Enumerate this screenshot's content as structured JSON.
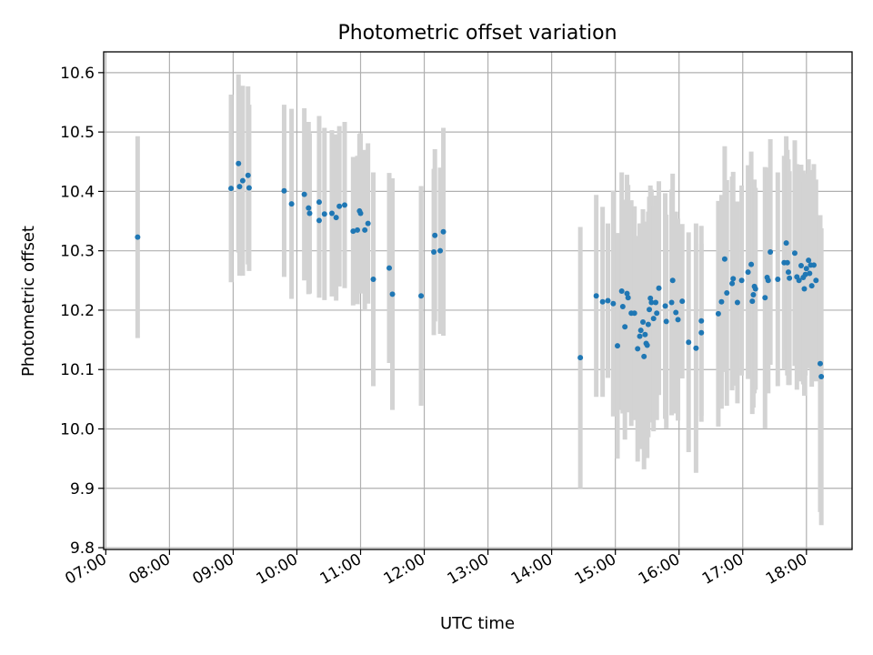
{
  "chart_data": {
    "type": "scatter",
    "title": "Photometric offset variation",
    "xlabel": "UTC time",
    "ylabel": "Photometric offset",
    "x_ticks": [
      "07:00",
      "08:00",
      "09:00",
      "10:00",
      "11:00",
      "12:00",
      "13:00",
      "14:00",
      "15:00",
      "16:00",
      "17:00",
      "18:00"
    ],
    "x_tick_hours": [
      7,
      8,
      9,
      10,
      11,
      12,
      13,
      14,
      15,
      16,
      17,
      18
    ],
    "y_ticks": [
      "9.8",
      "9.9",
      "10.0",
      "10.1",
      "10.2",
      "10.3",
      "10.4",
      "10.5",
      "10.6"
    ],
    "y_tick_values": [
      9.8,
      9.9,
      10.0,
      10.1,
      10.2,
      10.3,
      10.4,
      10.5,
      10.6
    ],
    "xlim": [
      "06:58",
      "18:43"
    ],
    "ylim": [
      9.797,
      10.635
    ],
    "grid": true,
    "point_color": "#1f77b4",
    "errorbar_color": "#d3d3d3",
    "points": [
      [
        "07:30",
        10.323,
        0.17
      ],
      [
        "08:58",
        10.405,
        0.158
      ],
      [
        "09:05",
        10.447,
        0.15
      ],
      [
        "09:06",
        10.408,
        0.15
      ],
      [
        "09:09",
        10.418,
        0.16
      ],
      [
        "09:14",
        10.427,
        0.15
      ],
      [
        "09:15",
        10.406,
        0.14
      ],
      [
        "09:48",
        10.401,
        0.145
      ],
      [
        "09:55",
        10.379,
        0.16
      ],
      [
        "10:07",
        10.395,
        0.145
      ],
      [
        "10:11",
        10.372,
        0.145
      ],
      [
        "10:12",
        10.363,
        0.135
      ],
      [
        "10:21",
        10.351,
        0.13
      ],
      [
        "10:21",
        10.382,
        0.145
      ],
      [
        "10:26",
        10.362,
        0.145
      ],
      [
        "10:33",
        10.363,
        0.14
      ],
      [
        "10:37",
        10.356,
        0.14
      ],
      [
        "10:40",
        10.375,
        0.135
      ],
      [
        "10:45",
        10.377,
        0.14
      ],
      [
        "10:53",
        10.333,
        0.125
      ],
      [
        "10:57",
        10.335,
        0.125
      ],
      [
        "10:59",
        10.367,
        0.13
      ],
      [
        "11:00",
        10.363,
        0.135
      ],
      [
        "11:04",
        10.335,
        0.135
      ],
      [
        "11:07",
        10.346,
        0.135
      ],
      [
        "11:12",
        10.252,
        0.18
      ],
      [
        "11:27",
        10.271,
        0.16
      ],
      [
        "11:30",
        10.227,
        0.195
      ],
      [
        "11:57",
        10.224,
        0.185
      ],
      [
        "12:09",
        10.298,
        0.14
      ],
      [
        "12:10",
        10.326,
        0.145
      ],
      [
        "12:15",
        10.3,
        0.14
      ],
      [
        "12:18",
        10.332,
        0.175
      ],
      [
        "14:27",
        10.12,
        0.22
      ],
      [
        "14:42",
        10.224,
        0.17
      ],
      [
        "14:48",
        10.214,
        0.16
      ],
      [
        "14:53",
        10.216,
        0.13
      ],
      [
        "14:58",
        10.211,
        0.19
      ],
      [
        "15:02",
        10.14,
        0.19
      ],
      [
        "15:06",
        10.232,
        0.2
      ],
      [
        "15:07",
        10.206,
        0.18
      ],
      [
        "15:09",
        10.172,
        0.19
      ],
      [
        "15:11",
        10.228,
        0.2
      ],
      [
        "15:12",
        10.221,
        0.19
      ],
      [
        "15:15",
        10.195,
        0.19
      ],
      [
        "15:18",
        10.195,
        0.18
      ],
      [
        "15:21",
        10.135,
        0.19
      ],
      [
        "15:23",
        10.156,
        0.19
      ],
      [
        "15:24",
        10.166,
        0.18
      ],
      [
        "15:26",
        10.18,
        0.19
      ],
      [
        "15:27",
        10.122,
        0.19
      ],
      [
        "15:28",
        10.159,
        0.19
      ],
      [
        "15:29",
        10.144,
        0.19
      ],
      [
        "15:30",
        10.141,
        0.19
      ],
      [
        "15:31",
        10.176,
        0.19
      ],
      [
        "15:32",
        10.201,
        0.19
      ],
      [
        "15:33",
        10.22,
        0.19
      ],
      [
        "15:34",
        10.213,
        0.19
      ],
      [
        "15:36",
        10.186,
        0.19
      ],
      [
        "15:38",
        10.213,
        0.18
      ],
      [
        "15:39",
        10.195,
        0.18
      ],
      [
        "15:41",
        10.237,
        0.18
      ],
      [
        "15:47",
        10.207,
        0.19
      ],
      [
        "15:48",
        10.181,
        0.18
      ],
      [
        "15:53",
        10.213,
        0.19
      ],
      [
        "15:54",
        10.25,
        0.18
      ],
      [
        "15:57",
        10.196,
        0.17
      ],
      [
        "15:59",
        10.184,
        0.17
      ],
      [
        "16:03",
        10.215,
        0.13
      ],
      [
        "16:09",
        10.146,
        0.185
      ],
      [
        "16:16",
        10.136,
        0.21
      ],
      [
        "16:21",
        10.162,
        0.15
      ],
      [
        "16:21",
        10.182,
        0.16
      ],
      [
        "16:37",
        10.194,
        0.19
      ],
      [
        "16:40",
        10.214,
        0.18
      ],
      [
        "16:43",
        10.286,
        0.19
      ],
      [
        "16:45",
        10.229,
        0.19
      ],
      [
        "16:50",
        10.245,
        0.18
      ],
      [
        "16:51",
        10.253,
        0.18
      ],
      [
        "16:55",
        10.213,
        0.17
      ],
      [
        "16:59",
        10.25,
        0.16
      ],
      [
        "17:05",
        10.264,
        0.18
      ],
      [
        "17:08",
        10.277,
        0.19
      ],
      [
        "17:09",
        10.215,
        0.19
      ],
      [
        "17:10",
        10.226,
        0.19
      ],
      [
        "17:11",
        10.24,
        0.18
      ],
      [
        "17:12",
        10.236,
        0.17
      ],
      [
        "17:21",
        10.221,
        0.22
      ],
      [
        "17:23",
        10.255,
        0.18
      ],
      [
        "17:24",
        10.25,
        0.19
      ],
      [
        "17:26",
        10.298,
        0.19
      ],
      [
        "17:33",
        10.252,
        0.18
      ],
      [
        "17:39",
        10.28,
        0.18
      ],
      [
        "17:41",
        10.313,
        0.18
      ],
      [
        "17:42",
        10.28,
        0.19
      ],
      [
        "17:43",
        10.264,
        0.19
      ],
      [
        "17:44",
        10.254,
        0.18
      ],
      [
        "17:49",
        10.296,
        0.19
      ],
      [
        "17:51",
        10.256,
        0.19
      ],
      [
        "17:53",
        10.25,
        0.17
      ],
      [
        "17:55",
        10.275,
        0.17
      ],
      [
        "17:57",
        10.255,
        0.18
      ],
      [
        "17:58",
        10.236,
        0.18
      ],
      [
        "17:59",
        10.26,
        0.17
      ],
      [
        "18:00",
        10.27,
        0.16
      ],
      [
        "18:02",
        10.284,
        0.17
      ],
      [
        "18:03",
        10.262,
        0.16
      ],
      [
        "18:04",
        10.276,
        0.16
      ],
      [
        "18:05",
        10.241,
        0.17
      ],
      [
        "18:07",
        10.276,
        0.17
      ],
      [
        "18:09",
        10.25,
        0.17
      ],
      [
        "18:13",
        10.11,
        0.25
      ],
      [
        "18:14",
        10.088,
        0.25
      ]
    ]
  }
}
